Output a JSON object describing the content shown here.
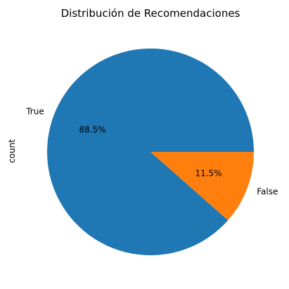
{
  "chart_data": {
    "type": "pie",
    "title": "Distribución de Recomendaciones",
    "ylabel": "count",
    "slices": [
      {
        "label": "True",
        "percent": 88.5,
        "pct_label": "88.5%",
        "color": "#1f77b4"
      },
      {
        "label": "False",
        "percent": 11.5,
        "pct_label": "11.5%",
        "color": "#ff7f0e"
      }
    ],
    "legend": "none"
  }
}
